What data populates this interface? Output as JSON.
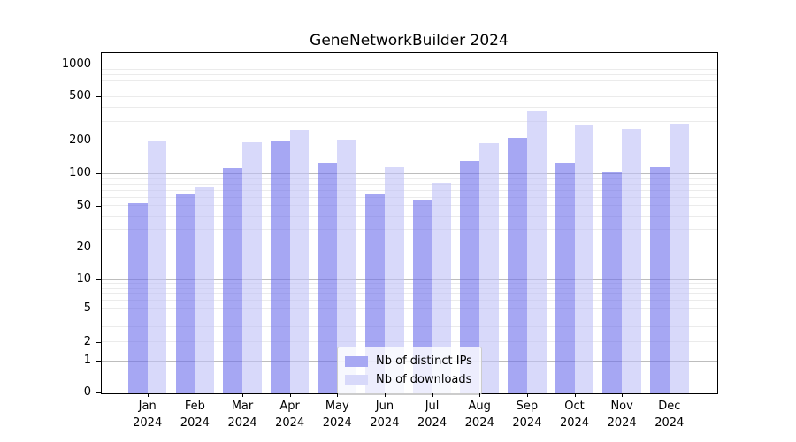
{
  "title": "GeneNetworkBuilder 2024",
  "legend": {
    "items": [
      {
        "label": "Nb of distinct IPs",
        "swatch": "#a7a8f3"
      },
      {
        "label": "Nb of downloads",
        "swatch": "#d8d9fa"
      }
    ]
  },
  "y_axis": {
    "tick_labels": [
      "0",
      "1",
      "2",
      "5",
      "10",
      "20",
      "50",
      "100",
      "200",
      "500",
      "1000"
    ],
    "tick_values": [
      0,
      1,
      2,
      5,
      10,
      20,
      50,
      100,
      200,
      500,
      1000
    ]
  },
  "x_axis": {
    "categories": [
      {
        "month": "Jan",
        "year": "2024"
      },
      {
        "month": "Feb",
        "year": "2024"
      },
      {
        "month": "Mar",
        "year": "2024"
      },
      {
        "month": "Apr",
        "year": "2024"
      },
      {
        "month": "May",
        "year": "2024"
      },
      {
        "month": "Jun",
        "year": "2024"
      },
      {
        "month": "Jul",
        "year": "2024"
      },
      {
        "month": "Aug",
        "year": "2024"
      },
      {
        "month": "Sep",
        "year": "2024"
      },
      {
        "month": "Oct",
        "year": "2024"
      },
      {
        "month": "Nov",
        "year": "2024"
      },
      {
        "month": "Dec",
        "year": "2024"
      }
    ]
  },
  "chart_data": {
    "type": "bar",
    "title": "GeneNetworkBuilder 2024",
    "categories": [
      "Jan 2024",
      "Feb 2024",
      "Mar 2024",
      "Apr 2024",
      "May 2024",
      "Jun 2024",
      "Jul 2024",
      "Aug 2024",
      "Sep 2024",
      "Oct 2024",
      "Nov 2024",
      "Dec 2024"
    ],
    "series": [
      {
        "name": "Nb of distinct IPs",
        "color": "rgba(107,108,235,0.6)",
        "solid": "#a7a8f3",
        "values": [
          54,
          65,
          115,
          203,
          130,
          65,
          58,
          135,
          220,
          130,
          105,
          118
        ]
      },
      {
        "name": "Nb of downloads",
        "color": "rgba(190,192,247,0.6)",
        "solid": "#d8d9fa",
        "values": [
          203,
          77,
          198,
          258,
          211,
          117,
          84,
          195,
          378,
          288,
          264,
          292
        ]
      }
    ],
    "xlabel": "",
    "ylabel": "",
    "yscale": "symlog",
    "y_ticks": [
      0,
      1,
      2,
      5,
      10,
      20,
      50,
      100,
      200,
      500,
      1000
    ],
    "ylim": [
      0,
      1300
    ],
    "grid": true,
    "legend_position": "lower center inside plot"
  }
}
